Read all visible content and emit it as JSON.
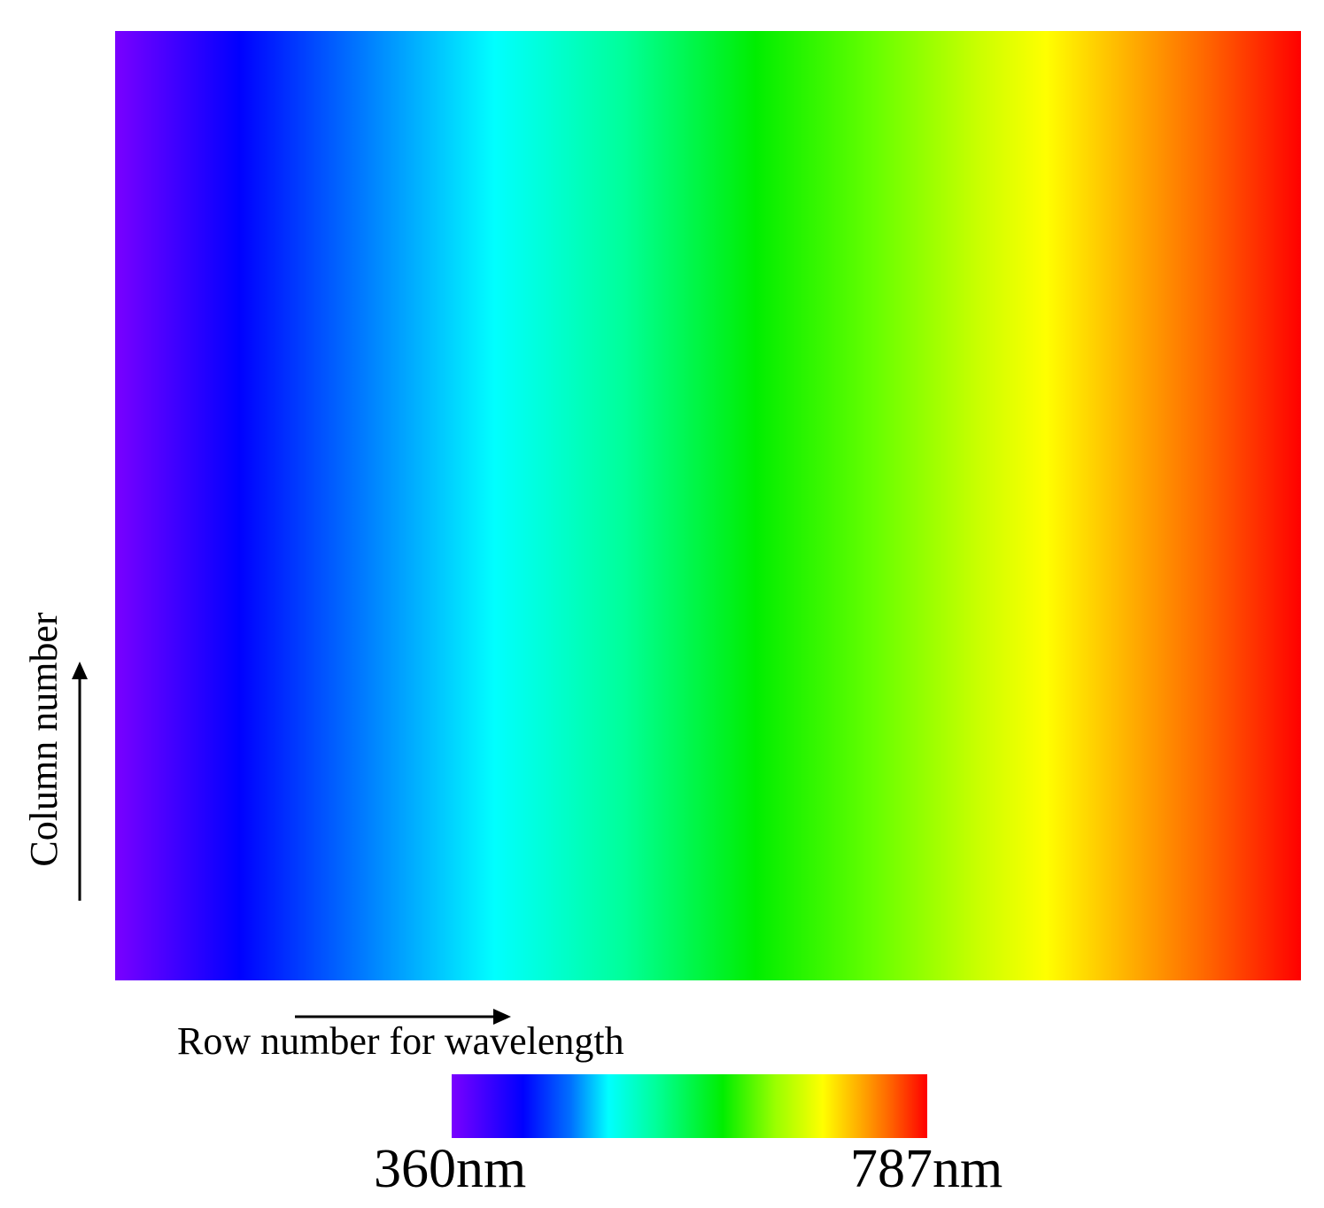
{
  "axes": {
    "vertical_label": "Column number",
    "horizontal_label": "Row number for wavelength"
  },
  "colorbar": {
    "min_label": "360nm",
    "max_label": "787nm"
  },
  "colors": {
    "violet": "#7a00ff",
    "blue": "#0000ff",
    "cyan": "#00ffff",
    "green": "#00ee00",
    "yellow": "#ffff00",
    "orange": "#ff8800",
    "red": "#ff0000"
  }
}
